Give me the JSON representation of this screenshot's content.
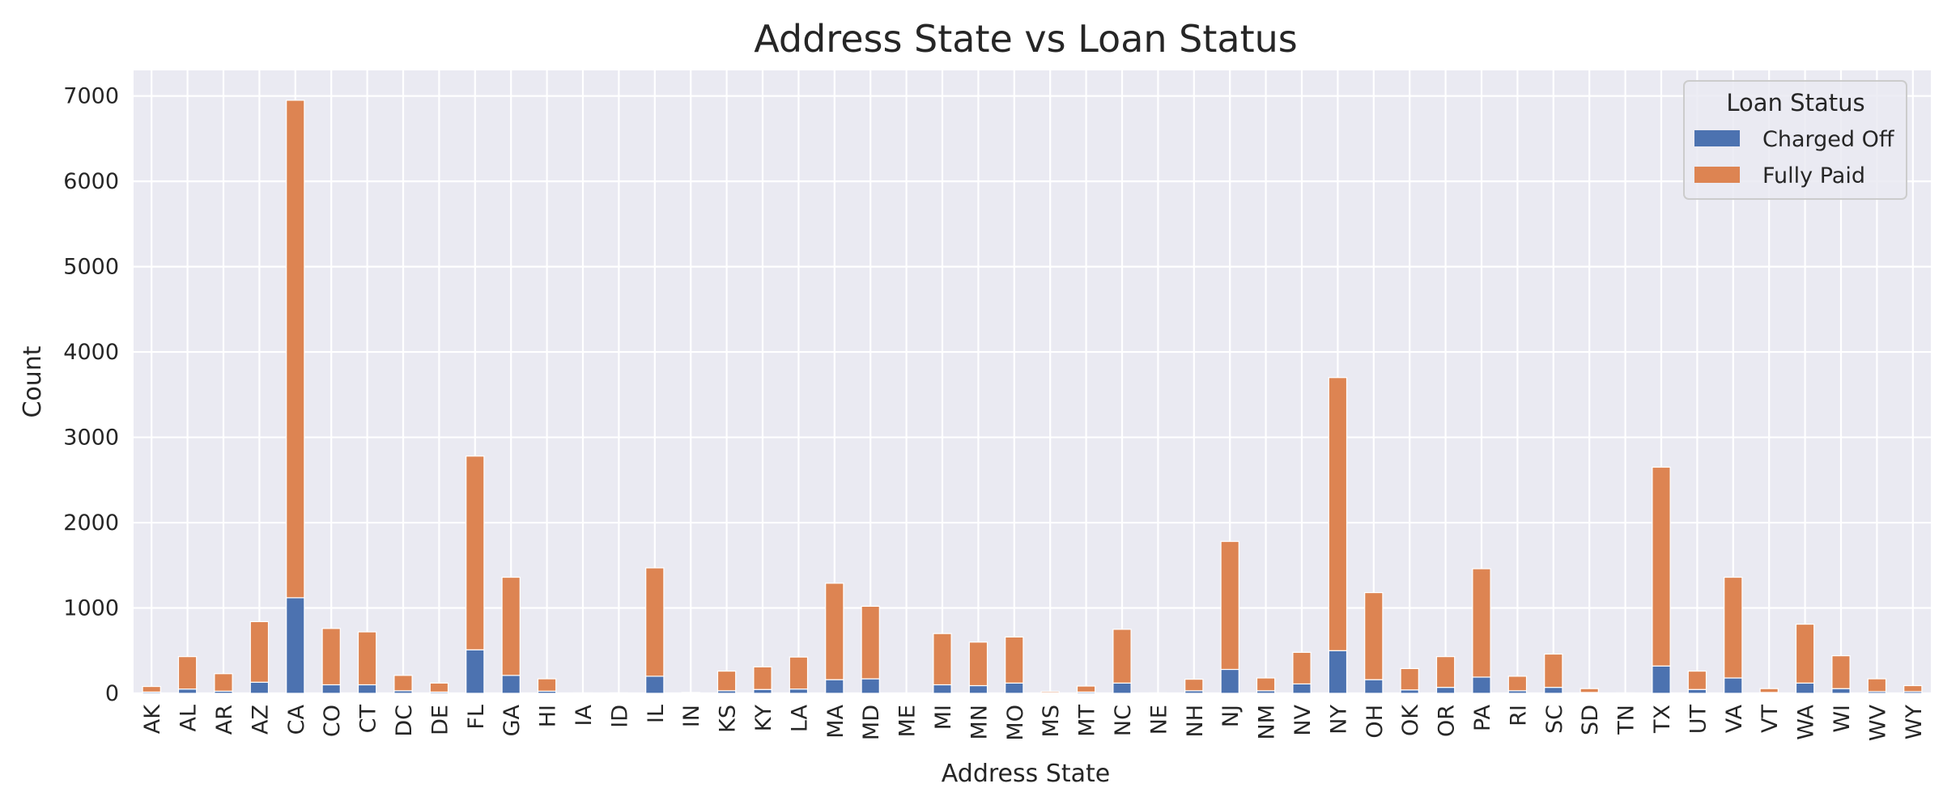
{
  "chart_data": {
    "type": "bar",
    "stacked": true,
    "title": "Address State vs Loan Status",
    "xlabel": "Address State",
    "ylabel": "Count",
    "ylim": [
      0,
      7300
    ],
    "yticks": [
      0,
      1000,
      2000,
      3000,
      4000,
      5000,
      6000,
      7000
    ],
    "grid": true,
    "legend": {
      "title": "Loan Status",
      "placement": "top-right"
    },
    "categories": [
      "AK",
      "AL",
      "AR",
      "AZ",
      "CA",
      "CO",
      "CT",
      "DC",
      "DE",
      "FL",
      "GA",
      "HI",
      "IA",
      "ID",
      "IL",
      "IN",
      "KS",
      "KY",
      "LA",
      "MA",
      "MD",
      "ME",
      "MI",
      "MN",
      "MO",
      "MS",
      "MT",
      "NC",
      "NE",
      "NH",
      "NJ",
      "NM",
      "NV",
      "NY",
      "OH",
      "OK",
      "OR",
      "PA",
      "RI",
      "SC",
      "SD",
      "TN",
      "TX",
      "UT",
      "VA",
      "VT",
      "WA",
      "WI",
      "WV",
      "WY"
    ],
    "series": [
      {
        "name": "Charged Off",
        "color": "#4c72b0",
        "values": [
          15,
          50,
          25,
          130,
          1120,
          100,
          100,
          30,
          15,
          510,
          210,
          25,
          0,
          0,
          200,
          2,
          30,
          45,
          50,
          160,
          170,
          0,
          100,
          90,
          120,
          5,
          15,
          120,
          3,
          30,
          280,
          30,
          110,
          500,
          160,
          40,
          70,
          190,
          30,
          70,
          10,
          2,
          320,
          45,
          180,
          10,
          120,
          55,
          20,
          20
        ]
      },
      {
        "name": "Fully Paid",
        "color": "#dd8452",
        "values": [
          65,
          380,
          205,
          710,
          5830,
          660,
          620,
          180,
          105,
          2270,
          1150,
          145,
          5,
          6,
          1270,
          8,
          230,
          265,
          375,
          1130,
          850,
          3,
          600,
          510,
          540,
          15,
          70,
          630,
          2,
          135,
          1500,
          150,
          370,
          3200,
          1020,
          250,
          360,
          1270,
          170,
          390,
          45,
          3,
          2330,
          215,
          1180,
          45,
          690,
          385,
          150,
          70
        ]
      }
    ]
  }
}
